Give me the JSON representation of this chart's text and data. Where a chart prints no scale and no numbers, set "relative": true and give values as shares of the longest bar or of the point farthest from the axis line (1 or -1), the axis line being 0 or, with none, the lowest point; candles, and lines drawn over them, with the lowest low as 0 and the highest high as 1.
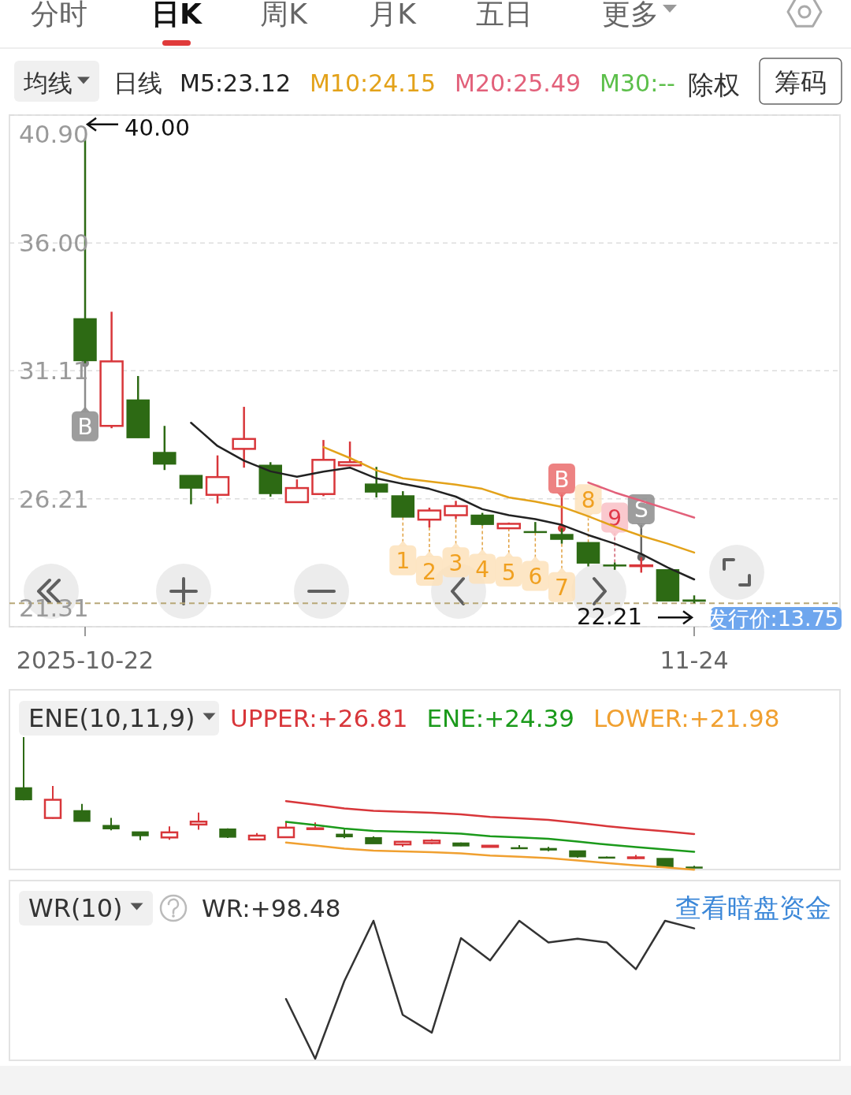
{
  "chart_data": [
    {
      "type": "other",
      "annotations": [
        "分时",
        "日K",
        "周K",
        "月K",
        "五日",
        "更多"
      ]
    },
    {
      "type": "candlestick",
      "categories": [
        "2025-10-22",
        null,
        null,
        null,
        null,
        null,
        null,
        null,
        null,
        null,
        null,
        null,
        null,
        null,
        null,
        null,
        null,
        null,
        null,
        null,
        null,
        null,
        null,
        "11-24"
      ],
      "ohlc": [
        [
          33.1,
          40.0,
          31.4,
          31.5
        ],
        [
          29.0,
          33.37,
          28.91,
          31.47
        ],
        [
          29.99,
          30.91,
          28.55,
          28.55
        ],
        [
          27.98,
          29.0,
          27.31,
          27.54
        ],
        [
          27.1,
          27.1,
          26.0,
          26.62
        ],
        [
          26.36,
          27.87,
          26.03,
          27.04
        ],
        [
          28.12,
          29.73,
          27.4,
          28.5
        ],
        [
          27.49,
          27.61,
          26.29,
          26.41
        ],
        [
          26.08,
          26.95,
          26.08,
          26.62
        ],
        [
          26.39,
          28.46,
          26.31,
          27.7
        ],
        [
          27.49,
          28.4,
          27.49,
          27.61
        ],
        [
          26.77,
          27.43,
          26.26,
          26.47
        ],
        [
          26.32,
          26.5,
          25.51,
          25.51
        ],
        [
          25.41,
          25.87,
          25.11,
          25.76
        ],
        [
          25.58,
          26.13,
          25.44,
          25.93
        ],
        [
          25.58,
          25.67,
          25.19,
          25.23
        ],
        [
          25.08,
          25.3,
          25.08,
          25.25
        ],
        [
          24.95,
          25.32,
          24.92,
          24.94
        ],
        [
          24.84,
          25.08,
          24.49,
          24.66
        ],
        [
          24.53,
          24.53,
          23.62,
          23.75
        ],
        [
          23.67,
          23.77,
          23.49,
          23.66
        ],
        [
          23.64,
          23.97,
          23.38,
          23.66
        ],
        [
          23.49,
          23.49,
          22.3,
          22.3
        ],
        [
          22.33,
          22.51,
          22.21,
          22.29
        ]
      ],
      "ylim": [
        21.31,
        40.9
      ],
      "yticks": [
        {
          "value": 40.9,
          "label": "40.90"
        },
        {
          "value": 36.0,
          "label": "36.00"
        },
        {
          "value": 31.11,
          "label": "31.11"
        },
        {
          "value": 26.21,
          "label": "26.21"
        },
        {
          "value": 21.31,
          "label": "21.31"
        }
      ],
      "grid": "y",
      "legend": "top",
      "series": [
        {
          "name": "M5:23.12",
          "type": "line",
          "color": "#222222",
          "values": [
            null,
            null,
            null,
            null,
            29.12,
            28.23,
            27.67,
            27.26,
            27.05,
            27.25,
            27.4,
            26.99,
            26.78,
            26.59,
            26.29,
            25.81,
            25.58,
            25.43,
            25.21,
            24.82,
            24.49,
            24.1,
            23.58,
            23.12
          ]
        },
        {
          "name": "M10:24.15",
          "type": "line",
          "color": "#e3a21a",
          "values": [
            null,
            null,
            null,
            null,
            null,
            null,
            null,
            null,
            null,
            28.19,
            27.77,
            27.3,
            26.99,
            26.87,
            26.75,
            26.59,
            26.26,
            26.1,
            25.9,
            25.54,
            25.14,
            24.79,
            24.49,
            24.15
          ]
        },
        {
          "name": "M20:25.49",
          "type": "line",
          "color": "#e2607a",
          "values": [
            null,
            null,
            null,
            null,
            null,
            null,
            null,
            null,
            null,
            null,
            null,
            null,
            null,
            null,
            null,
            null,
            null,
            null,
            null,
            26.83,
            26.45,
            26.13,
            25.81,
            25.49
          ]
        },
        {
          "name": "M30:--",
          "type": "line",
          "color": "#5cbf4a",
          "values": [
            null,
            null,
            null,
            null,
            null,
            null,
            null,
            null,
            null,
            null,
            null,
            null,
            null,
            null,
            null,
            null,
            null,
            null,
            null,
            null,
            null,
            null,
            null,
            null
          ]
        }
      ],
      "ref_lines": [
        {
          "axis": "y",
          "value": 22.21,
          "color": "#b8a878",
          "line_style": "dashed"
        }
      ],
      "annotations": [
        {
          "text": "40.00",
          "x": "2025-10-22",
          "y": 40.0
        },
        {
          "text": "22.21",
          "x": "11-24",
          "y": 22.21
        },
        {
          "text": "B",
          "y": 31.4
        },
        {
          "text": "1",
          "y": 25.51
        },
        {
          "text": "2",
          "y": 25.11
        },
        {
          "text": "3",
          "y": 25.44
        },
        {
          "text": "4",
          "y": 25.19
        },
        {
          "text": "5",
          "y": 25.08
        },
        {
          "text": "6",
          "y": 24.92
        },
        {
          "text": "7",
          "y": 24.49
        },
        {
          "text": "B",
          "y": 25.08
        },
        {
          "text": "8",
          "y": 24.53
        },
        {
          "text": "9",
          "y": 23.77
        },
        {
          "text": "S",
          "y": 23.97
        },
        "均线",
        "日线",
        "除权",
        "筹码",
        "发行价:13.75"
      ]
    },
    {
      "type": "candlestick",
      "title": "ENE(10,11,9)",
      "relative": true,
      "legend": "top",
      "categories": [
        null,
        null,
        null,
        null,
        null,
        null,
        null,
        null,
        null,
        null,
        null,
        null,
        null,
        null,
        null,
        null,
        null,
        null,
        null,
        null,
        null,
        null,
        null,
        null
      ],
      "ohlc": [
        [
          0.612,
          1.0,
          0.517,
          0.522
        ],
        [
          0.382,
          0.627,
          0.377,
          0.521
        ],
        [
          0.437,
          0.489,
          0.357,
          0.357
        ],
        [
          0.324,
          0.382,
          0.287,
          0.3
        ],
        [
          0.275,
          0.275,
          0.213,
          0.247
        ],
        [
          0.233,
          0.318,
          0.215,
          0.272
        ],
        [
          0.332,
          0.423,
          0.292,
          0.354
        ],
        [
          0.297,
          0.303,
          0.229,
          0.236
        ],
        [
          0.218,
          0.267,
          0.218,
          0.247
        ],
        [
          0.235,
          0.352,
          0.23,
          0.308
        ],
        [
          0.297,
          0.348,
          0.297,
          0.303
        ],
        [
          0.257,
          0.293,
          0.228,
          0.239
        ],
        [
          0.231,
          0.241,
          0.186,
          0.186
        ],
        [
          0.18,
          0.206,
          0.163,
          0.2
        ],
        [
          0.19,
          0.22,
          0.182,
          0.209
        ],
        [
          0.19,
          0.195,
          0.167,
          0.169
        ],
        [
          0.161,
          0.173,
          0.161,
          0.17
        ],
        [
          0.154,
          0.174,
          0.152,
          0.153
        ],
        [
          0.148,
          0.161,
          0.128,
          0.138
        ],
        [
          0.13,
          0.13,
          0.079,
          0.086
        ],
        [
          0.082,
          0.087,
          0.072,
          0.081
        ],
        [
          0.08,
          0.099,
          0.066,
          0.081
        ],
        [
          0.072,
          0.072,
          0.005,
          0.005
        ],
        [
          0.006,
          0.016,
          0.0,
          0.004
        ]
      ],
      "series": [
        {
          "name": "UPPER:+26.81",
          "type": "line",
          "color": "#d8363a",
          "values": [
            null,
            null,
            null,
            null,
            null,
            null,
            null,
            null,
            null,
            0.511,
            0.484,
            0.455,
            0.436,
            0.429,
            0.421,
            0.41,
            0.39,
            0.38,
            0.368,
            0.345,
            0.32,
            0.298,
            0.28,
            0.259
          ]
        },
        {
          "name": "ENE:+24.39",
          "type": "line",
          "color": "#1b9a1b",
          "values": [
            null,
            null,
            null,
            null,
            null,
            null,
            null,
            null,
            null,
            0.352,
            0.328,
            0.301,
            0.284,
            0.277,
            0.271,
            0.262,
            0.242,
            0.233,
            0.222,
            0.202,
            0.179,
            0.159,
            0.142,
            0.123
          ]
        },
        {
          "name": "LOWER:+21.98",
          "type": "line",
          "color": "#f0a030",
          "values": [
            null,
            null,
            null,
            null,
            null,
            null,
            null,
            null,
            null,
            0.194,
            0.172,
            0.148,
            0.132,
            0.126,
            0.12,
            0.112,
            0.095,
            0.086,
            0.076,
            0.058,
            0.038,
            0.02,
            0.004,
            -0.013
          ]
        }
      ]
    },
    {
      "type": "line",
      "title": "WR(10)",
      "relative": true,
      "legend": "top",
      "categories": [
        null,
        null,
        null,
        null,
        null,
        null,
        null,
        null,
        null,
        null,
        null,
        null,
        null,
        null,
        null,
        null,
        null,
        null,
        null,
        null,
        null,
        null,
        null,
        null
      ],
      "series": [
        {
          "name": "WR:+98.48",
          "color": "#333333",
          "values": [
            null,
            null,
            null,
            null,
            null,
            null,
            null,
            null,
            null,
            0.433,
            0.0,
            0.563,
            1.0,
            0.319,
            0.189,
            0.874,
            0.713,
            1.0,
            0.843,
            0.87,
            0.843,
            0.65,
            1.0,
            0.945
          ]
        }
      ],
      "annotations": [
        "查看暗盘资金"
      ]
    }
  ]
}
